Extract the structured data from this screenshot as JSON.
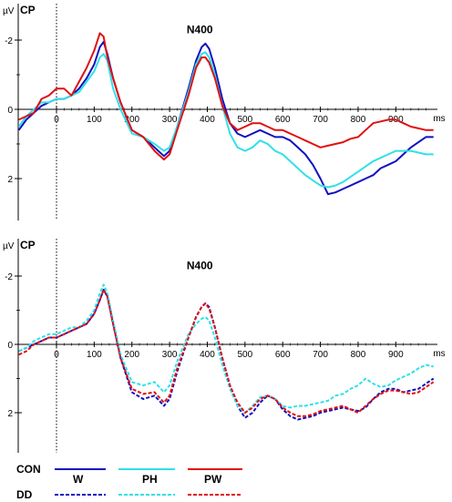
{
  "chart_data": [
    {
      "type": "line",
      "panel_label": "CP",
      "unit": "µV",
      "annotation": "N400",
      "x_unit": "ms",
      "xlim": [
        -100,
        1000
      ],
      "ylim": [
        -2.8,
        2.8
      ],
      "y_inverted": true,
      "x_ticks": [
        "0",
        "100",
        "200",
        "300",
        "400",
        "500",
        "600",
        "700",
        "800",
        "900"
      ],
      "y_ticks": [
        "-2",
        "0",
        "2"
      ],
      "series": [
        {
          "group": "CON",
          "condition": "W",
          "style": "solid",
          "color": "#1010c0",
          "x": [
            -100,
            -80,
            -60,
            -40,
            -20,
            0,
            20,
            40,
            60,
            80,
            100,
            115,
            125,
            135,
            150,
            170,
            200,
            230,
            260,
            285,
            300,
            320,
            350,
            370,
            385,
            395,
            405,
            420,
            440,
            460,
            480,
            500,
            520,
            540,
            560,
            580,
            600,
            620,
            640,
            660,
            680,
            700,
            720,
            740,
            760,
            780,
            800,
            820,
            840,
            860,
            880,
            900,
            920,
            940,
            960,
            980,
            1000
          ],
          "y": [
            0.6,
            0.3,
            0.1,
            -0.1,
            -0.2,
            -0.3,
            -0.3,
            -0.4,
            -0.6,
            -0.9,
            -1.3,
            -1.8,
            -1.95,
            -1.6,
            -0.9,
            -0.2,
            0.6,
            0.8,
            1.1,
            1.35,
            1.2,
            0.5,
            -0.6,
            -1.4,
            -1.8,
            -1.9,
            -1.75,
            -1.2,
            -0.3,
            0.4,
            0.7,
            0.8,
            0.7,
            0.6,
            0.7,
            0.8,
            0.8,
            0.9,
            1.1,
            1.3,
            1.6,
            2.0,
            2.45,
            2.4,
            2.3,
            2.2,
            2.1,
            2.0,
            1.9,
            1.7,
            1.6,
            1.5,
            1.3,
            1.1,
            0.95,
            0.8,
            0.8
          ]
        },
        {
          "group": "CON",
          "condition": "PH",
          "style": "solid",
          "color": "#30e0e8",
          "x": [
            -100,
            -80,
            -60,
            -40,
            -20,
            0,
            20,
            40,
            60,
            80,
            100,
            115,
            125,
            135,
            150,
            170,
            200,
            230,
            260,
            285,
            300,
            320,
            350,
            370,
            385,
            395,
            405,
            420,
            440,
            460,
            480,
            500,
            520,
            540,
            560,
            580,
            600,
            620,
            640,
            660,
            680,
            700,
            720,
            740,
            760,
            780,
            800,
            820,
            840,
            860,
            880,
            900,
            920,
            940,
            960,
            980,
            1000
          ],
          "y": [
            0.5,
            0.2,
            0.0,
            -0.2,
            -0.2,
            -0.3,
            -0.3,
            -0.4,
            -0.5,
            -0.8,
            -1.1,
            -1.5,
            -1.6,
            -1.4,
            -0.6,
            0.0,
            0.7,
            0.8,
            1.0,
            1.2,
            1.1,
            0.5,
            -0.5,
            -1.3,
            -1.6,
            -1.65,
            -1.5,
            -1.0,
            -0.1,
            0.7,
            1.1,
            1.2,
            1.1,
            0.9,
            1.0,
            1.2,
            1.3,
            1.5,
            1.7,
            1.9,
            2.05,
            2.2,
            2.25,
            2.2,
            2.1,
            1.95,
            1.8,
            1.65,
            1.5,
            1.4,
            1.3,
            1.2,
            1.2,
            1.2,
            1.25,
            1.3,
            1.3
          ]
        },
        {
          "group": "CON",
          "condition": "PW",
          "style": "solid",
          "color": "#e01010",
          "x": [
            -100,
            -80,
            -60,
            -40,
            -20,
            0,
            20,
            40,
            60,
            80,
            100,
            115,
            125,
            135,
            150,
            170,
            200,
            230,
            260,
            285,
            300,
            320,
            350,
            370,
            385,
            395,
            405,
            420,
            440,
            460,
            480,
            500,
            520,
            540,
            560,
            580,
            600,
            620,
            640,
            660,
            680,
            700,
            720,
            740,
            760,
            780,
            800,
            820,
            840,
            860,
            880,
            900,
            920,
            940,
            960,
            980,
            1000
          ],
          "y": [
            0.3,
            0.2,
            0.1,
            -0.3,
            -0.4,
            -0.6,
            -0.6,
            -0.4,
            -0.8,
            -1.2,
            -1.7,
            -2.2,
            -2.1,
            -1.5,
            -0.9,
            -0.2,
            0.6,
            0.8,
            1.2,
            1.45,
            1.3,
            0.6,
            -0.4,
            -1.2,
            -1.5,
            -1.5,
            -1.35,
            -0.9,
            -0.1,
            0.4,
            0.6,
            0.5,
            0.4,
            0.4,
            0.5,
            0.6,
            0.6,
            0.7,
            0.8,
            0.9,
            1.0,
            1.1,
            1.05,
            1.0,
            0.95,
            0.85,
            0.8,
            0.6,
            0.4,
            0.35,
            0.3,
            0.3,
            0.4,
            0.5,
            0.55,
            0.6,
            0.6
          ]
        }
      ]
    },
    {
      "type": "line",
      "panel_label": "CP",
      "unit": "µV",
      "annotation": "N400",
      "x_unit": "ms",
      "xlim": [
        -100,
        1000
      ],
      "ylim": [
        -2.8,
        2.8
      ],
      "y_inverted": true,
      "x_ticks": [
        "0",
        "100",
        "200",
        "300",
        "400",
        "500",
        "600",
        "700",
        "800",
        "900"
      ],
      "y_ticks": [
        "-2",
        "0",
        "2"
      ],
      "series": [
        {
          "group": "DD",
          "condition": "W",
          "style": "dashed",
          "color": "#1010c0",
          "x": [
            -100,
            -80,
            -60,
            -40,
            -20,
            0,
            20,
            40,
            60,
            80,
            100,
            115,
            125,
            135,
            150,
            170,
            200,
            230,
            260,
            285,
            300,
            320,
            350,
            370,
            385,
            395,
            405,
            420,
            440,
            460,
            480,
            500,
            520,
            540,
            560,
            580,
            600,
            620,
            640,
            660,
            680,
            700,
            720,
            740,
            760,
            780,
            800,
            820,
            840,
            860,
            880,
            900,
            920,
            940,
            960,
            980,
            1000
          ],
          "y": [
            0.2,
            0.1,
            0.0,
            -0.1,
            -0.2,
            -0.2,
            -0.3,
            -0.4,
            -0.5,
            -0.6,
            -0.9,
            -1.3,
            -1.6,
            -1.4,
            -0.6,
            0.4,
            1.4,
            1.6,
            1.5,
            1.8,
            1.6,
            0.8,
            -0.2,
            -0.8,
            -1.1,
            -1.2,
            -1.1,
            -0.5,
            0.4,
            1.2,
            1.8,
            2.15,
            2.0,
            1.7,
            1.5,
            1.6,
            1.9,
            2.1,
            2.2,
            2.15,
            2.1,
            2.0,
            1.95,
            1.9,
            1.85,
            1.9,
            1.95,
            1.85,
            1.6,
            1.4,
            1.3,
            1.3,
            1.4,
            1.35,
            1.3,
            1.15,
            1.0
          ]
        },
        {
          "group": "DD",
          "condition": "PH",
          "style": "dashed",
          "color": "#30e0e8",
          "x": [
            -100,
            -80,
            -60,
            -40,
            -20,
            0,
            20,
            40,
            60,
            80,
            100,
            115,
            125,
            135,
            150,
            170,
            200,
            230,
            260,
            285,
            300,
            320,
            350,
            370,
            385,
            395,
            405,
            420,
            440,
            460,
            480,
            500,
            520,
            540,
            560,
            580,
            600,
            620,
            640,
            660,
            680,
            700,
            720,
            740,
            760,
            780,
            800,
            820,
            840,
            860,
            880,
            900,
            920,
            940,
            960,
            980,
            1000
          ],
          "y": [
            0.2,
            0.1,
            -0.1,
            -0.2,
            -0.3,
            -0.3,
            -0.4,
            -0.5,
            -0.5,
            -0.7,
            -1.0,
            -1.5,
            -1.75,
            -1.5,
            -0.7,
            0.3,
            1.1,
            1.2,
            1.1,
            1.4,
            1.2,
            0.5,
            -0.3,
            -0.6,
            -0.75,
            -0.8,
            -0.7,
            -0.2,
            0.6,
            1.3,
            1.8,
            2.0,
            1.8,
            1.55,
            1.5,
            1.6,
            1.8,
            1.85,
            1.8,
            1.8,
            1.75,
            1.7,
            1.65,
            1.5,
            1.45,
            1.3,
            1.2,
            1.0,
            1.15,
            1.25,
            1.2,
            1.05,
            0.95,
            0.85,
            0.7,
            0.6,
            0.65
          ]
        },
        {
          "group": "DD",
          "condition": "PW",
          "style": "dashed",
          "color": "#e01010",
          "x": [
            -100,
            -80,
            -60,
            -40,
            -20,
            0,
            20,
            40,
            60,
            80,
            100,
            115,
            125,
            135,
            150,
            170,
            200,
            230,
            260,
            285,
            300,
            320,
            350,
            370,
            385,
            395,
            405,
            420,
            440,
            460,
            480,
            500,
            520,
            540,
            560,
            580,
            600,
            620,
            640,
            660,
            680,
            700,
            720,
            740,
            760,
            780,
            800,
            820,
            840,
            860,
            880,
            900,
            920,
            940,
            960,
            980,
            1000
          ],
          "y": [
            0.3,
            0.2,
            0.0,
            -0.1,
            -0.2,
            -0.2,
            -0.3,
            -0.4,
            -0.5,
            -0.6,
            -0.9,
            -1.3,
            -1.6,
            -1.4,
            -0.6,
            0.4,
            1.3,
            1.45,
            1.4,
            1.7,
            1.5,
            0.7,
            -0.2,
            -0.8,
            -1.1,
            -1.2,
            -1.05,
            -0.5,
            0.4,
            1.2,
            1.7,
            2.0,
            1.85,
            1.6,
            1.5,
            1.6,
            1.85,
            2.0,
            2.1,
            2.1,
            2.05,
            1.95,
            1.9,
            1.85,
            1.8,
            1.9,
            2.0,
            1.8,
            1.6,
            1.45,
            1.35,
            1.35,
            1.4,
            1.45,
            1.4,
            1.25,
            1.1
          ]
        }
      ]
    }
  ],
  "legend": {
    "groups": [
      "CON",
      "DD"
    ],
    "conditions": [
      "W",
      "PH",
      "PW"
    ]
  }
}
